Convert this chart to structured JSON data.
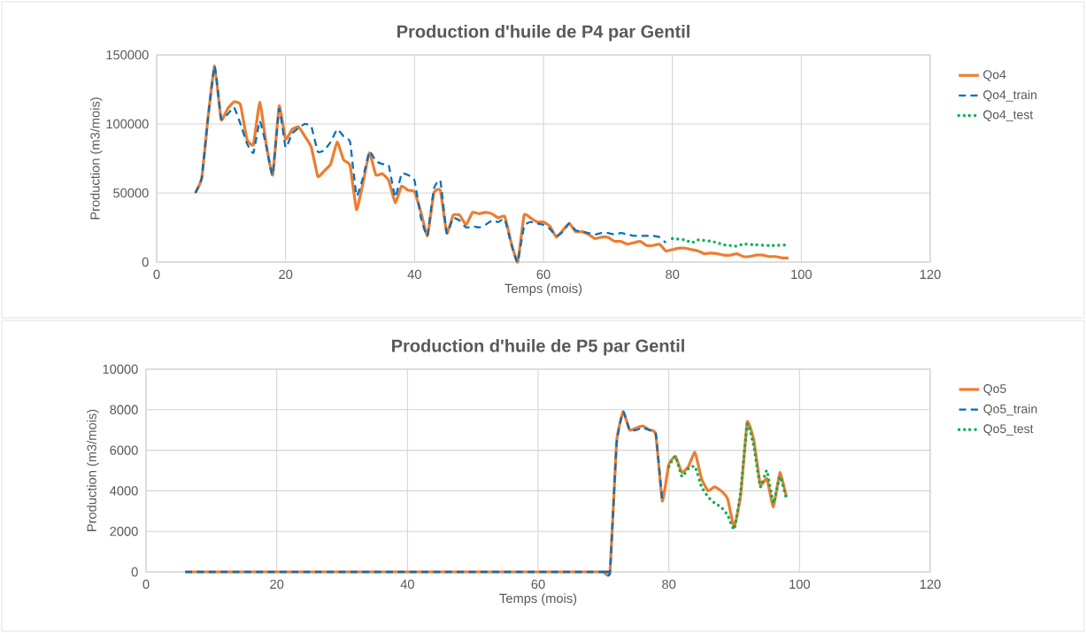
{
  "chart_data": [
    {
      "type": "line",
      "title": "Production d'huile de P4 par Gentil",
      "xlabel": "Temps (mois)",
      "ylabel": "Production (m3/mois)",
      "xlim": [
        0,
        120
      ],
      "xticks": [
        0,
        20,
        40,
        60,
        80,
        100,
        120
      ],
      "ylim": [
        0,
        150000
      ],
      "yticks": [
        0,
        50000,
        100000,
        150000
      ],
      "grid": true,
      "legend": "right",
      "series": [
        {
          "name": "Qo4",
          "color": "#ed7d31",
          "line_style": "solid",
          "x": [
            6,
            7,
            8,
            9,
            10,
            11,
            12,
            13,
            14,
            15,
            16,
            17,
            18,
            19,
            20,
            21,
            22,
            23,
            24,
            25,
            26,
            27,
            28,
            29,
            30,
            31,
            32,
            33,
            34,
            35,
            36,
            37,
            38,
            39,
            40,
            41,
            42,
            43,
            44,
            45,
            46,
            47,
            48,
            49,
            50,
            51,
            52,
            53,
            54,
            55,
            56,
            57,
            58,
            59,
            60,
            61,
            62,
            63,
            64,
            65,
            66,
            67,
            68,
            69,
            70,
            71,
            72,
            73,
            74,
            75,
            76,
            77,
            78,
            79,
            80,
            81,
            82,
            83,
            84,
            85,
            86,
            87,
            88,
            89,
            90,
            91,
            92,
            93,
            94,
            95,
            96,
            97,
            98
          ],
          "values": [
            50000,
            61000,
            106000,
            142000,
            103000,
            111000,
            116000,
            114000,
            89000,
            85000,
            116000,
            85000,
            63000,
            113000,
            89000,
            96000,
            98000,
            91000,
            83000,
            62000,
            66000,
            71000,
            87000,
            74000,
            70000,
            38000,
            57000,
            79000,
            63000,
            64000,
            59000,
            43000,
            55000,
            52000,
            51000,
            36000,
            19000,
            50000,
            52000,
            21000,
            34000,
            34000,
            27000,
            36000,
            35000,
            36000,
            35000,
            32000,
            33000,
            14000,
            0,
            34000,
            32000,
            29000,
            29000,
            26000,
            18000,
            23000,
            28000,
            22000,
            22000,
            20000,
            17000,
            18000,
            18000,
            15000,
            15000,
            13000,
            14000,
            15000,
            12000,
            12000,
            13000,
            8000,
            9000,
            10000,
            10000,
            9000,
            8000,
            6000,
            6500,
            6000,
            5000,
            5000,
            6000,
            4000,
            4000,
            5000,
            5000,
            4000,
            4000,
            3000,
            3000
          ]
        },
        {
          "name": "Qo4_train",
          "color": "#0070c0",
          "line_style": "dashed",
          "x": [
            6,
            7,
            8,
            9,
            10,
            11,
            12,
            13,
            14,
            15,
            16,
            17,
            18,
            19,
            20,
            21,
            22,
            23,
            24,
            25,
            26,
            27,
            28,
            29,
            30,
            31,
            32,
            33,
            34,
            35,
            36,
            37,
            38,
            39,
            40,
            41,
            42,
            43,
            44,
            45,
            46,
            47,
            48,
            49,
            50,
            51,
            52,
            53,
            54,
            55,
            56,
            57,
            58,
            59,
            60,
            61,
            62,
            63,
            64,
            65,
            66,
            67,
            68,
            69,
            70,
            71,
            72,
            73,
            74,
            75,
            76,
            77,
            78,
            79
          ],
          "values": [
            50000,
            61000,
            106000,
            142000,
            104000,
            107000,
            112000,
            100000,
            86000,
            79000,
            102000,
            84000,
            63000,
            111000,
            83000,
            93000,
            97000,
            100000,
            98000,
            80000,
            81000,
            87000,
            96000,
            91000,
            87000,
            48000,
            61000,
            80000,
            73000,
            71000,
            70000,
            47000,
            64000,
            63000,
            59000,
            32000,
            19000,
            53000,
            59000,
            21000,
            32000,
            30000,
            25000,
            26000,
            25000,
            27000,
            30000,
            29000,
            31000,
            13000,
            0,
            26000,
            29000,
            28000,
            27000,
            24000,
            19000,
            22000,
            28000,
            23000,
            22000,
            21000,
            20000,
            21000,
            21000,
            20000,
            21000,
            20000,
            19000,
            19000,
            19000,
            19000,
            18000,
            14000
          ]
        },
        {
          "name": "Qo4_test",
          "color": "#00b050",
          "line_style": "dotted",
          "x": [
            80,
            82,
            83,
            84,
            86,
            87,
            88,
            90,
            91,
            93,
            95,
            98
          ],
          "values": [
            17000,
            16000,
            14000,
            16000,
            15000,
            14000,
            12500,
            11500,
            13000,
            12500,
            12000,
            12500
          ]
        }
      ]
    },
    {
      "type": "line",
      "title": "Production d'huile de P5 par Gentil",
      "xlabel": "Temps (mois)",
      "ylabel": "Production (m3/mois)",
      "xlim": [
        0,
        120
      ],
      "xticks": [
        0,
        20,
        40,
        60,
        80,
        100,
        120
      ],
      "ylim": [
        0,
        10000
      ],
      "yticks": [
        0,
        2000,
        4000,
        6000,
        8000,
        10000
      ],
      "grid": true,
      "legend": "right",
      "series": [
        {
          "name": "Qo5",
          "color": "#ed7d31",
          "line_style": "solid",
          "x": [
            6,
            69,
            70,
            71,
            72,
            73,
            74,
            75,
            76,
            77,
            78,
            79,
            80,
            81,
            82,
            83,
            84,
            85,
            86,
            87,
            88,
            89,
            90,
            91,
            92,
            93,
            94,
            95,
            96,
            97,
            98
          ],
          "values": [
            0,
            0,
            0,
            0,
            6400,
            7900,
            7000,
            7100,
            7200,
            7000,
            6800,
            3500,
            5300,
            5700,
            4900,
            5200,
            5900,
            4600,
            4000,
            4200,
            4000,
            3600,
            2200,
            3800,
            7400,
            6500,
            4300,
            4600,
            3200,
            4900,
            3700
          ]
        },
        {
          "name": "Qo5_train",
          "color": "#0070c0",
          "line_style": "dashed",
          "x": [
            6,
            69,
            70,
            71,
            72,
            73,
            74,
            75,
            76,
            77,
            78,
            79
          ],
          "values": [
            0,
            0,
            0,
            0,
            6300,
            7900,
            7000,
            7000,
            7100,
            7000,
            6800,
            3500
          ]
        },
        {
          "name": "Qo5_test",
          "color": "#00b050",
          "line_style": "dotted",
          "x": [
            80,
            81,
            82,
            83,
            84,
            85,
            86,
            87,
            88,
            89,
            90,
            91,
            92,
            93,
            94,
            95,
            96,
            97,
            98
          ],
          "values": [
            5200,
            5700,
            4700,
            5100,
            5200,
            4200,
            3700,
            3400,
            3200,
            2800,
            2100,
            4000,
            7300,
            6200,
            4200,
            5000,
            3400,
            4700,
            3600
          ]
        }
      ]
    }
  ]
}
